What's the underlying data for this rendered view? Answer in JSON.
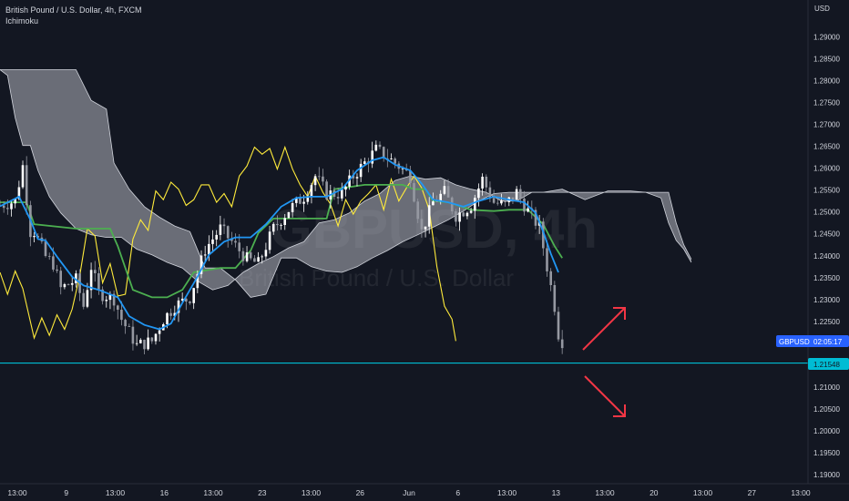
{
  "header": {
    "title": "British Pound / U.S. Dollar, 4h, FXCM",
    "indicator": "Ichimoku"
  },
  "axis": {
    "currency": "USD",
    "y_ticks": [
      1.29,
      1.285,
      1.28,
      1.275,
      1.27,
      1.265,
      1.26,
      1.255,
      1.25,
      1.245,
      1.24,
      1.235,
      1.23,
      1.225,
      1.22,
      1.215,
      1.21,
      1.205,
      1.2,
      1.195,
      1.19
    ],
    "y_tick_labels": [
      "1.29000",
      "1.28500",
      "1.28000",
      "1.27500",
      "1.27000",
      "1.26500",
      "1.26000",
      "1.25500",
      "1.25000",
      "1.24500",
      "1.24000",
      "1.23500",
      "1.23000",
      "1.22500",
      "1.22000",
      "1.21500",
      "1.21000",
      "1.20500",
      "1.20000",
      "1.19500",
      "1.19000"
    ],
    "x_tick_labels": [
      "13:00",
      "9",
      "13:00",
      "16",
      "13:00",
      "23",
      "13:00",
      "26",
      "Jun",
      "6",
      "13:00",
      "13",
      "13:00",
      "20",
      "13:00",
      "27",
      "13:00"
    ]
  },
  "watermark": {
    "symbol": "GBPUSD, 4h",
    "name": "British Pound / U.S. Dollar"
  },
  "price_tag": {
    "symbol": "GBPUSD",
    "countdown": "02:05:17"
  },
  "level_tag": "1.21548",
  "colors": {
    "background": "#131722",
    "up": "#ffffff",
    "down": "#9598a1",
    "conversion_line": "#2196f3",
    "base_line": "#4caf50",
    "lagging_span": "#ffeb3b",
    "cloud_fill": "#b2b5be",
    "cloud_edge": "#d1d4dc",
    "horizontal_line": "#00bcd4",
    "arrow": "#f23645",
    "price_tag": "#2962ff"
  },
  "chart_data": {
    "type": "candlestick",
    "symbol": "GBPUSD",
    "timeframe": "4h",
    "source": "FXCM",
    "y_range": [
      1.1885,
      1.2975
    ],
    "horizontal_level": 1.21548,
    "last_price": 1.2203,
    "anchors": [
      [
        0,
        1.2515
      ],
      [
        4,
        1.2525
      ],
      [
        6,
        1.2605
      ],
      [
        8,
        1.2455
      ],
      [
        9,
        1.2455
      ],
      [
        12,
        1.2398
      ],
      [
        14,
        1.2382
      ],
      [
        16,
        1.2325
      ],
      [
        20,
        1.2345
      ],
      [
        22,
        1.2285
      ],
      [
        24,
        1.2375
      ],
      [
        26,
        1.2315
      ],
      [
        30,
        1.2302
      ],
      [
        32,
        1.2255
      ],
      [
        36,
        1.2195
      ],
      [
        40,
        1.2205
      ],
      [
        43,
        1.2255
      ],
      [
        46,
        1.2285
      ],
      [
        50,
        1.2305
      ],
      [
        54,
        1.2415
      ],
      [
        58,
        1.2462
      ],
      [
        62,
        1.2422
      ],
      [
        65,
        1.2392
      ],
      [
        68,
        1.2382
      ],
      [
        72,
        1.2462
      ],
      [
        76,
        1.2505
      ],
      [
        80,
        1.2535
      ],
      [
        83,
        1.2582
      ],
      [
        86,
        1.2542
      ],
      [
        90,
        1.2542
      ],
      [
        93,
        1.2582
      ],
      [
        96,
        1.2612
      ],
      [
        99,
        1.2642
      ],
      [
        102,
        1.2625
      ],
      [
        105,
        1.2605
      ],
      [
        108,
        1.2582
      ],
      [
        111,
        1.2455
      ],
      [
        114,
        1.2522
      ],
      [
        117,
        1.2545
      ],
      [
        120,
        1.2492
      ],
      [
        124,
        1.2515
      ],
      [
        127,
        1.2575
      ],
      [
        130,
        1.2522
      ],
      [
        133,
        1.2515
      ],
      [
        136,
        1.2545
      ],
      [
        139,
        1.2502
      ],
      [
        142,
        1.2465
      ],
      [
        144,
        1.2375
      ],
      [
        146,
        1.2285
      ],
      [
        147,
        1.2222
      ],
      [
        148,
        1.2205
      ]
    ],
    "conversion_line": [
      [
        0,
        1.2513
      ],
      [
        5,
        1.2535
      ],
      [
        8,
        1.2482
      ],
      [
        10,
        1.2438
      ],
      [
        12,
        1.2435
      ],
      [
        15,
        1.2398
      ],
      [
        19,
        1.2352
      ],
      [
        22,
        1.2332
      ],
      [
        26,
        1.2322
      ],
      [
        31,
        1.2305
      ],
      [
        34,
        1.2262
      ],
      [
        38,
        1.2242
      ],
      [
        42,
        1.2232
      ],
      [
        45,
        1.2245
      ],
      [
        48,
        1.2292
      ],
      [
        52,
        1.2352
      ],
      [
        55,
        1.2402
      ],
      [
        59,
        1.2432
      ],
      [
        62,
        1.2442
      ],
      [
        66,
        1.2442
      ],
      [
        70,
        1.2472
      ],
      [
        74,
        1.2512
      ],
      [
        78,
        1.2532
      ],
      [
        82,
        1.2535
      ],
      [
        86,
        1.2535
      ],
      [
        90,
        1.2552
      ],
      [
        94,
        1.2595
      ],
      [
        98,
        1.2618
      ],
      [
        101,
        1.2625
      ],
      [
        104,
        1.2608
      ],
      [
        108,
        1.2595
      ],
      [
        111,
        1.2565
      ],
      [
        114,
        1.2528
      ],
      [
        118,
        1.2522
      ],
      [
        122,
        1.2512
      ],
      [
        126,
        1.2525
      ],
      [
        130,
        1.2535
      ],
      [
        134,
        1.2528
      ],
      [
        138,
        1.2522
      ],
      [
        141,
        1.2498
      ],
      [
        143,
        1.2455
      ],
      [
        145,
        1.2405
      ],
      [
        147,
        1.2362
      ]
    ],
    "base_line": [
      [
        0,
        1.2522
      ],
      [
        7,
        1.2522
      ],
      [
        9,
        1.2472
      ],
      [
        20,
        1.2462
      ],
      [
        29,
        1.2462
      ],
      [
        31,
        1.2422
      ],
      [
        35,
        1.2322
      ],
      [
        40,
        1.2305
      ],
      [
        44,
        1.2305
      ],
      [
        48,
        1.2322
      ],
      [
        51,
        1.2362
      ],
      [
        58,
        1.2372
      ],
      [
        62,
        1.2372
      ],
      [
        66,
        1.2412
      ],
      [
        68,
        1.2452
      ],
      [
        72,
        1.2485
      ],
      [
        86,
        1.2485
      ],
      [
        88,
        1.2552
      ],
      [
        96,
        1.2562
      ],
      [
        101,
        1.2562
      ],
      [
        106,
        1.2562
      ],
      [
        109,
        1.2552
      ],
      [
        112,
        1.2552
      ],
      [
        114,
        1.2525
      ],
      [
        118,
        1.2522
      ],
      [
        124,
        1.2505
      ],
      [
        130,
        1.2502
      ],
      [
        134,
        1.2505
      ],
      [
        139,
        1.2505
      ],
      [
        143,
        1.2472
      ],
      [
        146,
        1.2422
      ],
      [
        148,
        1.2395
      ]
    ],
    "lagging_span": [
      [
        0,
        1.2362
      ],
      [
        2,
        1.2312
      ],
      [
        4,
        1.2365
      ],
      [
        6,
        1.2325
      ],
      [
        9,
        1.2212
      ],
      [
        11,
        1.2258
      ],
      [
        13,
        1.2218
      ],
      [
        15,
        1.2265
      ],
      [
        17,
        1.2232
      ],
      [
        19,
        1.2278
      ],
      [
        21,
        1.2355
      ],
      [
        23,
        1.2462
      ],
      [
        25,
        1.2445
      ],
      [
        27,
        1.2338
      ],
      [
        29,
        1.2382
      ],
      [
        31,
        1.2308
      ],
      [
        33,
        1.2312
      ],
      [
        35,
        1.2438
      ],
      [
        37,
        1.2482
      ],
      [
        39,
        1.2458
      ],
      [
        41,
        1.2548
      ],
      [
        43,
        1.2528
      ],
      [
        45,
        1.2568
      ],
      [
        47,
        1.2552
      ],
      [
        49,
        1.2515
      ],
      [
        51,
        1.2528
      ],
      [
        53,
        1.2562
      ],
      [
        55,
        1.2562
      ],
      [
        57,
        1.2522
      ],
      [
        59,
        1.2542
      ],
      [
        61,
        1.2512
      ],
      [
        63,
        1.2582
      ],
      [
        65,
        1.2605
      ],
      [
        67,
        1.2648
      ],
      [
        69,
        1.2632
      ],
      [
        71,
        1.2645
      ],
      [
        73,
        1.2598
      ],
      [
        75,
        1.2648
      ],
      [
        77,
        1.2598
      ],
      [
        79,
        1.2562
      ],
      [
        81,
        1.2535
      ],
      [
        83,
        1.2582
      ],
      [
        85,
        1.2545
      ],
      [
        87,
        1.2518
      ],
      [
        89,
        1.2468
      ],
      [
        91,
        1.2528
      ],
      [
        93,
        1.2495
      ],
      [
        95,
        1.2525
      ],
      [
        97,
        1.2542
      ],
      [
        99,
        1.2562
      ],
      [
        101,
        1.2505
      ],
      [
        103,
        1.2575
      ],
      [
        105,
        1.2525
      ],
      [
        107,
        1.2555
      ],
      [
        109,
        1.2582
      ],
      [
        111,
        1.2555
      ],
      [
        113,
        1.2505
      ],
      [
        115,
        1.2375
      ],
      [
        117,
        1.2285
      ],
      [
        119,
        1.2255
      ],
      [
        120,
        1.2205
      ]
    ],
    "cloud": {
      "span_a": [
        [
          0,
          1.2825
        ],
        [
          2,
          1.2812
        ],
        [
          4,
          1.2715
        ],
        [
          6,
          1.2652
        ],
        [
          8,
          1.2652
        ],
        [
          10,
          1.2595
        ],
        [
          13,
          1.2535
        ],
        [
          16,
          1.2498
        ],
        [
          20,
          1.2462
        ],
        [
          24,
          1.2448
        ],
        [
          28,
          1.2442
        ],
        [
          32,
          1.2442
        ],
        [
          36,
          1.2415
        ],
        [
          40,
          1.2402
        ],
        [
          44,
          1.2385
        ],
        [
          48,
          1.2372
        ],
        [
          52,
          1.2342
        ],
        [
          56,
          1.2322
        ],
        [
          60,
          1.2332
        ],
        [
          64,
          1.2362
        ],
        [
          68,
          1.2382
        ],
        [
          72,
          1.2398
        ],
        [
          76,
          1.2418
        ],
        [
          80,
          1.2432
        ],
        [
          84,
          1.2475
        ],
        [
          88,
          1.2482
        ],
        [
          92,
          1.2498
        ],
        [
          96,
          1.2525
        ],
        [
          100,
          1.2542
        ],
        [
          104,
          1.2572
        ],
        [
          108,
          1.2582
        ],
        [
          112,
          1.2575
        ],
        [
          116,
          1.2578
        ],
        [
          120,
          1.2562
        ],
        [
          124,
          1.2552
        ],
        [
          128,
          1.2545
        ],
        [
          132,
          1.2525
        ],
        [
          136,
          1.2525
        ],
        [
          140,
          1.2545
        ],
        [
          143,
          1.2545
        ],
        [
          148,
          1.2552
        ],
        [
          154,
          1.2528
        ],
        [
          160,
          1.2548
        ],
        [
          166,
          1.2548
        ],
        [
          170,
          1.2545
        ],
        [
          174,
          1.2532
        ],
        [
          176,
          1.2475
        ],
        [
          178,
          1.2435
        ],
        [
          180,
          1.2415
        ],
        [
          182,
          1.2385
        ]
      ],
      "span_b": [
        [
          0,
          1.2825
        ],
        [
          20,
          1.2825
        ],
        [
          24,
          1.2755
        ],
        [
          28,
          1.2735
        ],
        [
          30,
          1.2612
        ],
        [
          34,
          1.2552
        ],
        [
          38,
          1.2512
        ],
        [
          42,
          1.2488
        ],
        [
          46,
          1.2468
        ],
        [
          50,
          1.2455
        ],
        [
          54,
          1.2372
        ],
        [
          58,
          1.2372
        ],
        [
          62,
          1.2345
        ],
        [
          66,
          1.2305
        ],
        [
          70,
          1.2312
        ],
        [
          74,
          1.2395
        ],
        [
          78,
          1.2395
        ],
        [
          82,
          1.2375
        ],
        [
          86,
          1.2365
        ],
        [
          90,
          1.2362
        ],
        [
          94,
          1.2375
        ],
        [
          98,
          1.2395
        ],
        [
          102,
          1.2412
        ],
        [
          106,
          1.2432
        ],
        [
          110,
          1.2448
        ],
        [
          114,
          1.2465
        ],
        [
          118,
          1.2482
        ],
        [
          122,
          1.2502
        ],
        [
          126,
          1.2525
        ],
        [
          130,
          1.2542
        ],
        [
          134,
          1.2545
        ],
        [
          138,
          1.2545
        ],
        [
          142,
          1.2545
        ],
        [
          146,
          1.2545
        ],
        [
          150,
          1.2545
        ],
        [
          156,
          1.2545
        ],
        [
          162,
          1.2545
        ],
        [
          168,
          1.2545
        ],
        [
          172,
          1.2545
        ],
        [
          176,
          1.2545
        ],
        [
          178,
          1.2475
        ],
        [
          180,
          1.2425
        ],
        [
          182,
          1.2392
        ]
      ]
    }
  }
}
